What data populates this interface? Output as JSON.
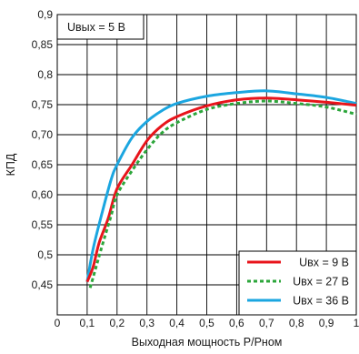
{
  "chart_data": {
    "type": "line",
    "xlabel": "Выходная мощность Р/Рном",
    "ylabel": "КПД",
    "xlim": [
      0,
      1
    ],
    "ylim": [
      0.4,
      0.9
    ],
    "x_ticks": [
      0,
      0.1,
      0.2,
      0.3,
      0.4,
      0.5,
      0.6,
      0.7,
      0.8,
      0.9,
      1
    ],
    "x_tick_labels": [
      "0",
      "0,1",
      "0,2",
      "0,3",
      "0,4",
      "0,5",
      "0,6",
      "0,7",
      "0,8",
      "0,9",
      "1"
    ],
    "y_ticks": [
      0.45,
      0.5,
      0.55,
      0.6,
      0.65,
      0.7,
      0.75,
      0.8,
      0.85,
      0.9
    ],
    "y_tick_labels": [
      "0,45",
      "0,5",
      "0,55",
      "0,60",
      "0,65",
      "0,70",
      "0,75",
      "0,8",
      "0,85",
      "0,9"
    ],
    "grid": true,
    "legend_position": "bottom-right",
    "annotation": "Uвых = 5 В",
    "series": [
      {
        "name": "Uвх = 9 В",
        "color": "#e8141b",
        "dash": "solid",
        "points": [
          [
            0.1,
            0.455
          ],
          [
            0.12,
            0.48
          ],
          [
            0.14,
            0.52
          ],
          [
            0.17,
            0.56
          ],
          [
            0.2,
            0.61
          ],
          [
            0.25,
            0.65
          ],
          [
            0.3,
            0.69
          ],
          [
            0.35,
            0.715
          ],
          [
            0.4,
            0.73
          ],
          [
            0.5,
            0.748
          ],
          [
            0.6,
            0.758
          ],
          [
            0.7,
            0.761
          ],
          [
            0.8,
            0.758
          ],
          [
            0.9,
            0.754
          ],
          [
            1.0,
            0.749
          ]
        ]
      },
      {
        "name": "Uвх = 27 В",
        "color": "#2ca63b",
        "dash": "dashed",
        "points": [
          [
            0.11,
            0.445
          ],
          [
            0.13,
            0.48
          ],
          [
            0.15,
            0.515
          ],
          [
            0.18,
            0.565
          ],
          [
            0.2,
            0.6
          ],
          [
            0.25,
            0.64
          ],
          [
            0.3,
            0.675
          ],
          [
            0.35,
            0.703
          ],
          [
            0.4,
            0.72
          ],
          [
            0.5,
            0.742
          ],
          [
            0.6,
            0.752
          ],
          [
            0.7,
            0.756
          ],
          [
            0.8,
            0.752
          ],
          [
            0.9,
            0.746
          ],
          [
            1.0,
            0.734
          ]
        ]
      },
      {
        "name": "Uвх = 36 В",
        "color": "#1ba6e0",
        "dash": "solid",
        "points": [
          [
            0.1,
            0.455
          ],
          [
            0.12,
            0.51
          ],
          [
            0.15,
            0.57
          ],
          [
            0.18,
            0.625
          ],
          [
            0.2,
            0.65
          ],
          [
            0.25,
            0.695
          ],
          [
            0.3,
            0.722
          ],
          [
            0.35,
            0.74
          ],
          [
            0.4,
            0.752
          ],
          [
            0.5,
            0.764
          ],
          [
            0.6,
            0.77
          ],
          [
            0.7,
            0.773
          ],
          [
            0.8,
            0.768
          ],
          [
            0.9,
            0.762
          ],
          [
            1.0,
            0.752
          ]
        ]
      }
    ]
  }
}
